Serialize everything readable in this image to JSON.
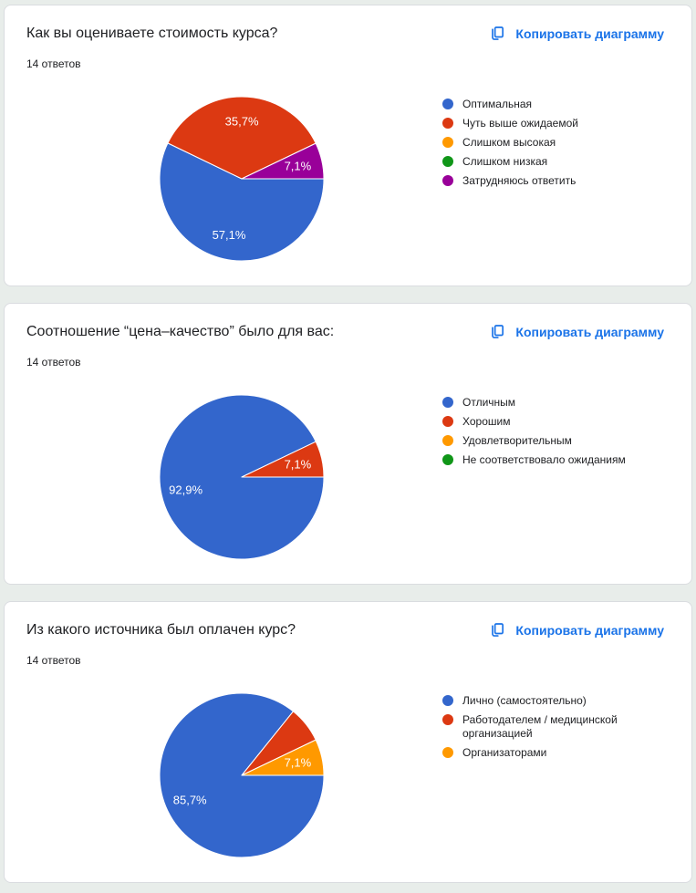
{
  "page_background": "#E8EDEA",
  "accent_link_color": "#1A73E8",
  "copy_button": {
    "label": "Копировать диаграмму",
    "icon": "copy-chart-icon",
    "color": "#1A73E8"
  },
  "cards": [
    {
      "responses_label": "14 ответов"
    },
    {
      "responses_label": "14 ответов"
    },
    {
      "responses_label": "14 ответов"
    }
  ],
  "chart_data": [
    {
      "type": "pie",
      "title": "Как вы оцениваете стоимость курса?",
      "subtitle": "14 ответов",
      "labels": [
        "Оптимальная",
        "Чуть выше ожидаемой",
        "Слишком высокая",
        "Слишком низкая",
        "Затрудняюсь ответить"
      ],
      "values": [
        57.1,
        35.7,
        0,
        0,
        7.1
      ],
      "value_labels": [
        "57,1%",
        "35,7%",
        "",
        "",
        "7,1%"
      ],
      "colors": [
        "#3366CC",
        "#DC3912",
        "#FF9900",
        "#109618",
        "#990099"
      ],
      "legend_position": "right",
      "start_angle": "east-clockwise"
    },
    {
      "type": "pie",
      "title": "Соотношение “цена–качество” было для вас:",
      "subtitle": "14 ответов",
      "labels": [
        "Отличным",
        "Хорошим",
        "Удовлетворительным",
        "Не соответствовало ожиданиям"
      ],
      "values": [
        92.9,
        7.1,
        0,
        0
      ],
      "value_labels": [
        "92,9%",
        "7,1%",
        "",
        ""
      ],
      "colors": [
        "#3366CC",
        "#DC3912",
        "#FF9900",
        "#109618"
      ],
      "legend_position": "right",
      "start_angle": "east-clockwise"
    },
    {
      "type": "pie",
      "title": "Из какого источника был оплачен курс?",
      "subtitle": "14 ответов",
      "labels": [
        "Лично (самостоятельно)",
        "Работодателем / медицинской организацией",
        "Организаторами"
      ],
      "values": [
        85.7,
        7.1,
        7.1
      ],
      "value_labels": [
        "85,7%",
        "",
        "7,1%"
      ],
      "colors": [
        "#3366CC",
        "#DC3912",
        "#FF9900"
      ],
      "legend_position": "right",
      "start_angle": "east-clockwise"
    }
  ]
}
